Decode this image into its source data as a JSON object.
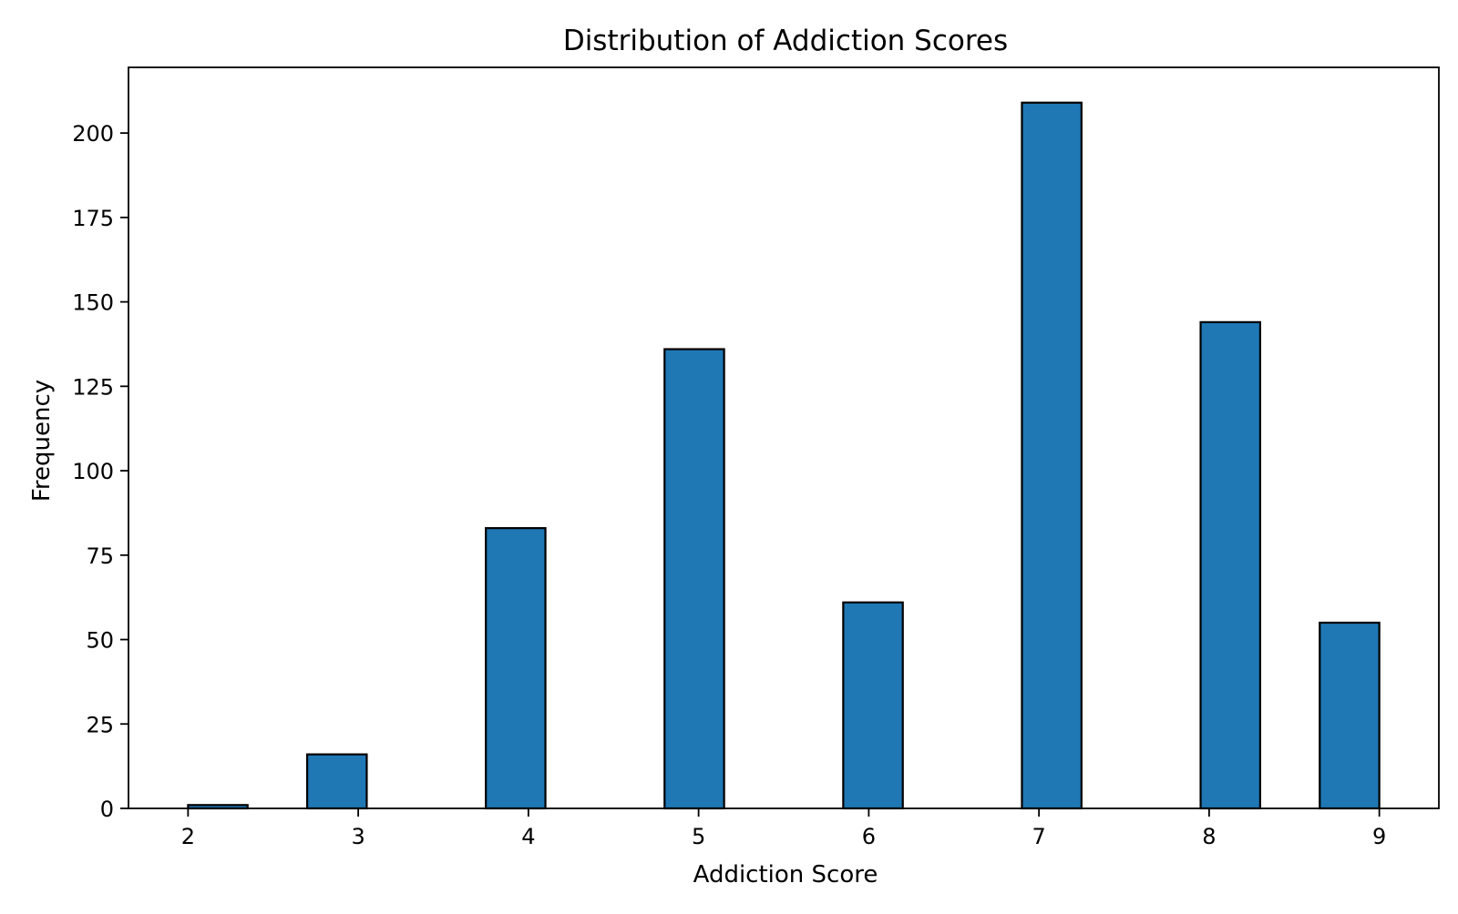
{
  "chart_data": {
    "type": "bar",
    "title": "Distribution of Addiction Scores",
    "xlabel": "Addiction Score",
    "ylabel": "Frequency",
    "bins": [
      {
        "start": 2.0,
        "end": 2.35,
        "count": 1
      },
      {
        "start": 2.7,
        "end": 3.05,
        "count": 16
      },
      {
        "start": 3.75,
        "end": 4.1,
        "count": 83
      },
      {
        "start": 4.8,
        "end": 5.15,
        "count": 136
      },
      {
        "start": 5.85,
        "end": 6.2,
        "count": 61
      },
      {
        "start": 6.9,
        "end": 7.25,
        "count": 209
      },
      {
        "start": 7.95,
        "end": 8.3,
        "count": 144
      },
      {
        "start": 8.65,
        "end": 9.0,
        "count": 55
      }
    ],
    "xlim": [
      1.65,
      9.35
    ],
    "ylim": [
      0,
      219.45
    ],
    "xticks": [
      "2",
      "3",
      "4",
      "5",
      "6",
      "7",
      "8",
      "9"
    ],
    "yticks": [
      "0",
      "25",
      "50",
      "75",
      "100",
      "125",
      "150",
      "175",
      "200"
    ],
    "grid": false,
    "legend": "none",
    "colors": {
      "bar_fill": "#1f77b4",
      "bar_edge": "#000000"
    }
  }
}
